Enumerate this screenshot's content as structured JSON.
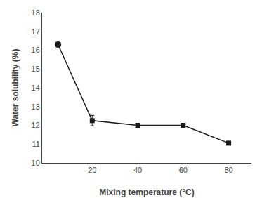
{
  "chart_data": {
    "type": "line",
    "xlabel": "Mixing temperature (°C)",
    "ylabel": "Water solubility (%)",
    "x": [
      5,
      20,
      40,
      60,
      80
    ],
    "series": [
      {
        "type": "line",
        "values": [
          16.3,
          12.25,
          12.0,
          12.0,
          11.05
        ],
        "yerr": [
          0.18,
          0.28,
          0.07,
          0.07,
          0.06
        ],
        "color": "#1a1a1a",
        "marker": "square",
        "line_style": "solid"
      },
      {
        "type": "scatter",
        "values": [
          16.3,
          null,
          null,
          null,
          null
        ],
        "color": "#1a1a1a",
        "marker": "circle"
      }
    ],
    "xlim": [
      -2,
      90
    ],
    "ylim": [
      10,
      18
    ],
    "xticks": [
      20,
      40,
      60,
      80
    ],
    "yticks": [
      10,
      11,
      12,
      13,
      14,
      15,
      16,
      17,
      18
    ],
    "grid": false
  }
}
